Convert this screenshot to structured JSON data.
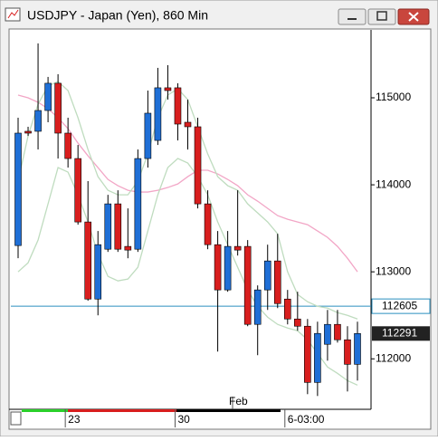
{
  "chart_data": {
    "type": "candlestick",
    "title": "USDJPY - Japan (Yen), 860 Min",
    "categories": [
      null,
      null,
      null,
      null,
      null,
      "23",
      null,
      null,
      null,
      null,
      null,
      null,
      null,
      null,
      null,
      null,
      "30",
      null,
      null,
      null,
      null,
      null,
      null,
      null,
      null,
      null,
      null,
      "6-03:00",
      null,
      null,
      null,
      null,
      null,
      null,
      null
    ],
    "month_label": "Feb",
    "open": [
      113302,
      114615,
      114615,
      114854,
      115167,
      114594,
      114302,
      113573,
      112687,
      113260,
      113781,
      113292,
      113260,
      114302,
      114510,
      115115,
      115115,
      114719,
      114667,
      113781,
      113312,
      112792,
      113292,
      113292,
      112396,
      112792,
      113125,
      112687,
      112458,
      112375,
      111729,
      112167,
      112396,
      112219,
      111937
    ],
    "high": [
      114771,
      114667,
      115625,
      115240,
      115271,
      114771,
      114458,
      114042,
      113469,
      113885,
      113937,
      113729,
      114406,
      115083,
      115344,
      115375,
      115167,
      114979,
      114771,
      113937,
      113469,
      113469,
      113937,
      113365,
      112844,
      113312,
      113437,
      112792,
      112771,
      112458,
      112427,
      112562,
      112562,
      112375,
      112427
    ],
    "low": [
      113156,
      114562,
      114406,
      114719,
      114302,
      114198,
      113542,
      112667,
      112500,
      113229,
      113229,
      113156,
      113229,
      114198,
      114458,
      114979,
      114510,
      114406,
      113729,
      113260,
      112083,
      112771,
      113187,
      112375,
      112042,
      112562,
      112583,
      112396,
      112323,
      111594,
      111573,
      111979,
      112187,
      111625,
      111750
    ],
    "close": [
      114594,
      114594,
      114854,
      115167,
      114594,
      114302,
      113573,
      112687,
      113312,
      113781,
      113260,
      113250,
      114302,
      114823,
      115115,
      115083,
      114698,
      114667,
      113781,
      113312,
      112792,
      113292,
      113250,
      112396,
      112792,
      113125,
      112635,
      112458,
      112375,
      111729,
      112292,
      112396,
      112219,
      111937,
      112291
    ],
    "up_color": "#1f6fd6",
    "down_color": "#d81e1e",
    "lines": [
      {
        "color": "#f2a6c6",
        "values": [
          115031,
          115000,
          114948,
          114875,
          114771,
          114646,
          114479,
          114333,
          114198,
          114062,
          113990,
          113937,
          113917,
          113917,
          113937,
          113969,
          114010,
          114094,
          114167,
          114167,
          114125,
          114062,
          113990,
          113885,
          113812,
          113729,
          113646,
          113604,
          113573,
          113542,
          113469,
          113396,
          113292,
          113156,
          113000
        ]
      },
      {
        "color": "#bfdcbf",
        "values": [
          114042,
          114562,
          114927,
          115135,
          115187,
          115083,
          114771,
          114406,
          114094,
          113937,
          113885,
          113885,
          114042,
          114354,
          114771,
          115031,
          115104,
          114979,
          114667,
          114354,
          114094,
          113990,
          113937,
          113781,
          113677,
          113573,
          113437,
          113000,
          112740,
          112656,
          112604,
          112583,
          112531,
          112500,
          112458
        ]
      },
      {
        "color": "#bfdcbf",
        "values": [
          113000,
          113104,
          113365,
          113781,
          114198,
          114146,
          113885,
          113573,
          113208,
          112948,
          112896,
          112917,
          113052,
          113469,
          113885,
          114198,
          114302,
          114250,
          114094,
          113885,
          113573,
          113312,
          113052,
          112792,
          112604,
          112479,
          112396,
          112354,
          112323,
          112219,
          112062,
          111906,
          111833,
          111750,
          111698
        ]
      }
    ],
    "horizontal_line": {
      "value": 112605,
      "color": "#2a8fbf"
    },
    "last_price": 112291,
    "ylim": [
      111420,
      115770
    ],
    "yticks": [
      112000,
      113000,
      114000,
      115000
    ]
  }
}
